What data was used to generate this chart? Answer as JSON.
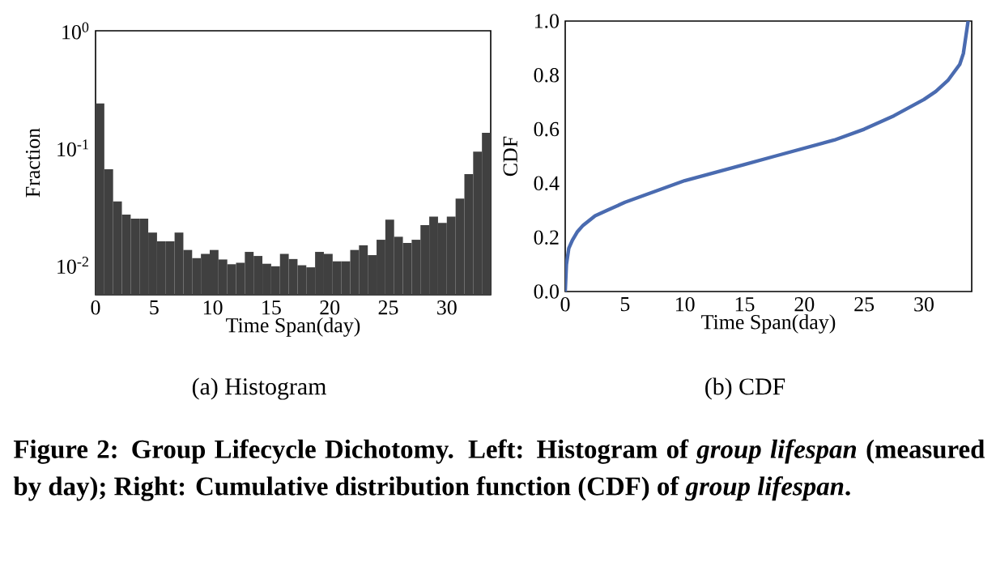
{
  "chart_data": [
    {
      "type": "histogram",
      "title": "(a) Histogram",
      "xlabel": "Time Span(day)",
      "ylabel": "Fraction",
      "color": "#404040",
      "log": "y",
      "bins": [
        0,
        0.75,
        1.5,
        2.25,
        3,
        3.75,
        4.5,
        5.25,
        6,
        6.75,
        7.5,
        8.25,
        9,
        9.75,
        10.5,
        11.25,
        12,
        12.75,
        13.5,
        14.25,
        15,
        15.75,
        16.5,
        17.25,
        18,
        18.75,
        19.5,
        20.25,
        21,
        21.75,
        22.5,
        23.25,
        24,
        24.75,
        25.5,
        26.25,
        27,
        27.75,
        28.5,
        29.25,
        30,
        30.75,
        31.5,
        32.25,
        33,
        33.75
      ],
      "values": [
        0.24,
        0.066,
        0.035,
        0.027,
        0.025,
        0.025,
        0.019,
        0.016,
        0.016,
        0.019,
        0.0135,
        0.0115,
        0.0125,
        0.0135,
        0.0112,
        0.0102,
        0.0105,
        0.013,
        0.012,
        0.0103,
        0.0098,
        0.0125,
        0.0113,
        0.01,
        0.0096,
        0.013,
        0.0125,
        0.0108,
        0.0108,
        0.0135,
        0.0148,
        0.0122,
        0.0165,
        0.0245,
        0.0175,
        0.0155,
        0.0165,
        0.022,
        0.026,
        0.023,
        0.026,
        0.037,
        0.06,
        0.093,
        0.135
      ],
      "xlim": [
        0,
        33.75
      ],
      "ylim": [
        0.0056,
        1
      ],
      "xticks": [
        0,
        5,
        10,
        15,
        20,
        25,
        30
      ],
      "yticks": [
        {
          "value": 0.01,
          "label": "10$^{-2}$"
        },
        {
          "value": 0.1,
          "label": "10$^{-1}$"
        },
        {
          "value": 1,
          "label": "10$^{0}$"
        }
      ],
      "annotations": [
        "**Figure 2: Group Lifecycle Dichotomy. Left: Histogram of *group lifespan* (measured by day); Right: Cumulative distribution function (CDF) of *group lifespan*.**"
      ]
    },
    {
      "type": "line",
      "title": "(b) CDF",
      "xlabel": "Time Span(day)",
      "ylabel": "CDF",
      "color": "#4a6bb0",
      "x": [
        0,
        0.1,
        0.3,
        0.6,
        1,
        1.5,
        2.5,
        3.5,
        5,
        7.5,
        10,
        12.5,
        15,
        17.5,
        20,
        22.5,
        25,
        27.5,
        30,
        31,
        32,
        32.5,
        33,
        33.3,
        33.5,
        33.7
      ],
      "values": [
        0,
        0.1,
        0.16,
        0.19,
        0.22,
        0.245,
        0.28,
        0.3,
        0.33,
        0.37,
        0.41,
        0.44,
        0.47,
        0.5,
        0.53,
        0.56,
        0.6,
        0.65,
        0.71,
        0.74,
        0.78,
        0.81,
        0.84,
        0.88,
        0.94,
        1.0
      ],
      "xlim": [
        0,
        34
      ],
      "ylim": [
        0,
        1
      ],
      "xticks": [
        0,
        5,
        10,
        15,
        20,
        25,
        30
      ],
      "yticks": [
        {
          "value": 0,
          "label": "0.0"
        },
        {
          "value": 0.2,
          "label": "0.2"
        },
        {
          "value": 0.4,
          "label": "0.4"
        },
        {
          "value": 0.6,
          "label": "0.6"
        },
        {
          "value": 0.8,
          "label": "0.8"
        },
        {
          "value": 1,
          "label": "1.0"
        }
      ]
    }
  ]
}
